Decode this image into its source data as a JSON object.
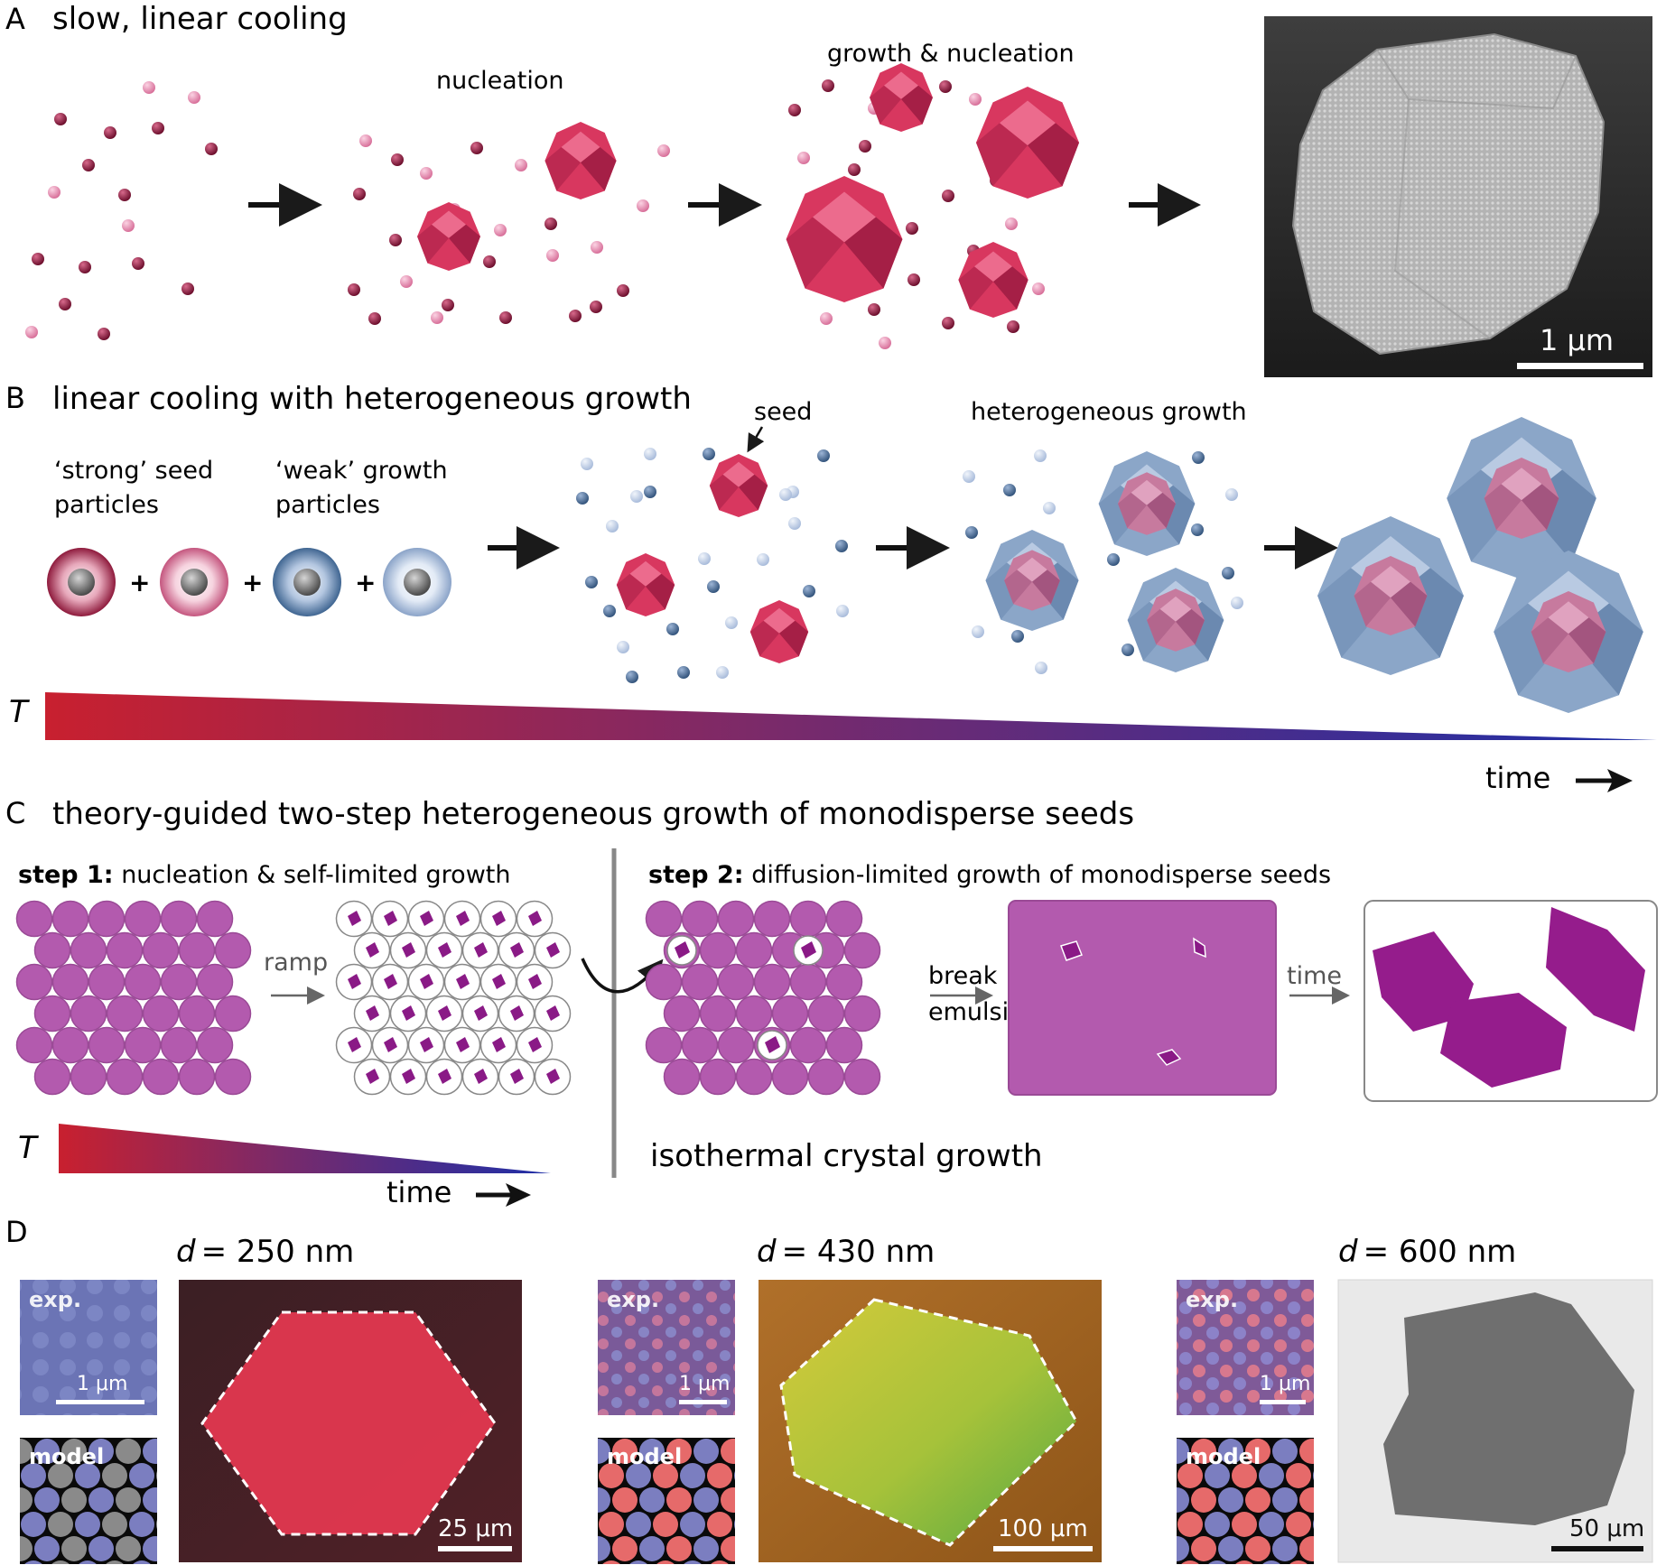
{
  "colors": {
    "crystal_red": "#d8375f",
    "crystal_red_dark": "#9a1c3c",
    "particle_dark": "#8c1a3e",
    "particle_light": "#e98cb0",
    "particle_blue_dark": "#4a6c94",
    "particle_blue_light": "#c3d2ea",
    "shell_blue": "#8ba6c8",
    "droplet_purple": "#b35aae",
    "seed_purple": "#8a1a86",
    "temp_hot": "#c8202f",
    "temp_cold": "#1e2fa8"
  },
  "panelA": {
    "letter": "A",
    "title": "slow, linear cooling",
    "stage_nucleation": "nucleation",
    "stage_growth": "growth & nucleation",
    "scalebar": "1 μm"
  },
  "panelB": {
    "letter": "B",
    "title": "linear cooling with heterogeneous growth",
    "strong_line1": "‘strong’ seed",
    "strong_line2": "particles",
    "weak_line1": "‘weak’ growth",
    "weak_line2": "particles",
    "plus": "+",
    "seed_label": "seed",
    "hetero_label": "heterogeneous growth",
    "T_label": "T",
    "time_label": "time"
  },
  "panelC": {
    "letter": "C",
    "title": "theory-guided two-step heterogeneous growth of monodisperse seeds",
    "step1_bold": "step 1:",
    "step1_text": " nucleation & self-limited growth",
    "step2_bold": "step 2:",
    "step2_text": " diffusion-limited growth of monodisperse seeds",
    "ramp_label": "ramp",
    "break_line1": "break",
    "break_line2": "emulsion",
    "time_arrow_label": "time",
    "T_label": "T",
    "time_label": "time",
    "isothermal_label": "isothermal crystal growth"
  },
  "panelD": {
    "letter": "D",
    "exp_label": "exp.",
    "model_label": "model",
    "d_symbol": "d",
    "sizes": [
      "= 250 nm",
      "= 430 nm",
      "= 600 nm"
    ],
    "small_scalebar": "1 μm",
    "big_scalebars": [
      "25 μm",
      "100 μm",
      "50 μm"
    ]
  }
}
